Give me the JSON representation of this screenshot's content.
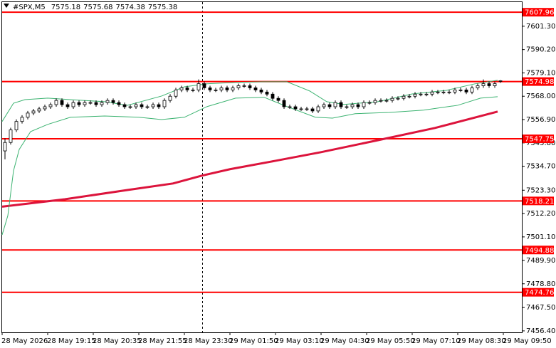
{
  "chart_data": {
    "type": "candlestick",
    "symbol": "#SPX,M5",
    "header_ohlc": [
      7575.18,
      7575.68,
      7574.38,
      7575.38
    ],
    "candle_color": "#000000",
    "candles": [
      [
        7542,
        7548,
        7538,
        7546
      ],
      [
        7546,
        7553,
        7545,
        7552
      ],
      [
        7552,
        7557,
        7551,
        7556
      ],
      [
        7556,
        7559,
        7555,
        7558
      ],
      [
        7558,
        7561,
        7557,
        7560
      ],
      [
        7560,
        7562,
        7559,
        7561
      ],
      [
        7561,
        7563,
        7560,
        7562
      ],
      [
        7562,
        7564,
        7561,
        7563
      ],
      [
        7563,
        7565,
        7562,
        7564
      ],
      [
        7564,
        7567,
        7563,
        7566
      ],
      [
        7566,
        7567,
        7563,
        7564
      ],
      [
        7564,
        7565,
        7562,
        7563
      ],
      [
        7563,
        7566,
        7562,
        7565
      ],
      [
        7565,
        7566,
        7563,
        7564
      ],
      [
        7564,
        7566,
        7563,
        7565
      ],
      [
        7565,
        7566,
        7564,
        7565
      ],
      [
        7565,
        7566,
        7563,
        7564
      ],
      [
        7564,
        7566,
        7563,
        7565
      ],
      [
        7565,
        7567,
        7564,
        7566
      ],
      [
        7566,
        7567,
        7564,
        7565
      ],
      [
        7565,
        7566,
        7563,
        7564
      ],
      [
        7564,
        7565,
        7562,
        7563
      ],
      [
        7563,
        7564,
        7562,
        7563
      ],
      [
        7563,
        7565,
        7562,
        7564
      ],
      [
        7564,
        7565,
        7562,
        7563
      ],
      [
        7563,
        7564,
        7562,
        7563
      ],
      [
        7563,
        7565,
        7562,
        7564
      ],
      [
        7564,
        7565,
        7562,
        7563
      ],
      [
        7563,
        7567,
        7562,
        7566
      ],
      [
        7566,
        7569,
        7565,
        7568
      ],
      [
        7568,
        7572,
        7567,
        7571
      ],
      [
        7571,
        7573,
        7570,
        7572
      ],
      [
        7572,
        7573,
        7570,
        7571
      ],
      [
        7571,
        7572,
        7570,
        7571
      ],
      [
        7571,
        7576,
        7570,
        7574
      ],
      [
        7574,
        7575,
        7571,
        7572
      ],
      [
        7572,
        7573,
        7570,
        7571
      ],
      [
        7571,
        7572,
        7570,
        7571
      ],
      [
        7571,
        7573,
        7570,
        7572
      ],
      [
        7572,
        7573,
        7570,
        7571
      ],
      [
        7571,
        7573,
        7570,
        7572
      ],
      [
        7572,
        7574,
        7571,
        7573
      ],
      [
        7573,
        7574,
        7572,
        7573
      ],
      [
        7573,
        7574,
        7571,
        7572
      ],
      [
        7572,
        7573,
        7570,
        7571
      ],
      [
        7571,
        7572,
        7569,
        7570
      ],
      [
        7570,
        7571,
        7568,
        7569
      ],
      [
        7569,
        7570,
        7566,
        7567
      ],
      [
        7567,
        7568,
        7565,
        7566
      ],
      [
        7566,
        7567,
        7562,
        7563
      ],
      [
        7563,
        7564,
        7562,
        7563
      ],
      [
        7563,
        7564,
        7561,
        7562
      ],
      [
        7562,
        7563,
        7561,
        7562
      ],
      [
        7562,
        7563,
        7561,
        7562
      ],
      [
        7562,
        7563,
        7560,
        7561
      ],
      [
        7561,
        7564,
        7560,
        7563
      ],
      [
        7563,
        7565,
        7562,
        7564
      ],
      [
        7564,
        7565,
        7562,
        7563
      ],
      [
        7563,
        7566,
        7562,
        7565
      ],
      [
        7565,
        7566,
        7562,
        7563
      ],
      [
        7563,
        7564,
        7562,
        7563
      ],
      [
        7563,
        7565,
        7562,
        7564
      ],
      [
        7564,
        7565,
        7562,
        7563
      ],
      [
        7563,
        7566,
        7562,
        7565
      ],
      [
        7565,
        7566,
        7564,
        7565
      ],
      [
        7565,
        7567,
        7564,
        7566
      ],
      [
        7566,
        7567,
        7565,
        7566
      ],
      [
        7566,
        7567,
        7565,
        7566
      ],
      [
        7566,
        7568,
        7565,
        7567
      ],
      [
        7567,
        7568,
        7566,
        7567
      ],
      [
        7567,
        7569,
        7566,
        7568
      ],
      [
        7568,
        7569,
        7567,
        7568
      ],
      [
        7568,
        7570,
        7567,
        7569
      ],
      [
        7569,
        7570,
        7568,
        7569
      ],
      [
        7569,
        7570,
        7568,
        7569
      ],
      [
        7569,
        7571,
        7568,
        7570
      ],
      [
        7570,
        7571,
        7569,
        7570
      ],
      [
        7570,
        7571,
        7569,
        7570
      ],
      [
        7570,
        7571,
        7569,
        7570
      ],
      [
        7570,
        7572,
        7569,
        7571
      ],
      [
        7571,
        7572,
        7570,
        7571
      ],
      [
        7571,
        7572,
        7569,
        7570
      ],
      [
        7570,
        7573,
        7569,
        7572
      ],
      [
        7572,
        7574,
        7571,
        7573
      ],
      [
        7573,
        7576,
        7572,
        7574
      ],
      [
        7574,
        7575,
        7572,
        7573
      ],
      [
        7573,
        7575,
        7572,
        7574
      ],
      [
        7575.18,
        7575.68,
        7574.38,
        7575.38
      ]
    ],
    "overlays": [
      {
        "color": "#dc143c",
        "width": 3,
        "x": [
          0,
          11,
          22,
          30,
          35,
          40,
          48,
          56,
          66,
          76,
          87
        ],
        "values": [
          7515.5,
          7519,
          7523.4,
          7526.5,
          7530.2,
          7533.3,
          7537.3,
          7541.4,
          7547.1,
          7552.9,
          7560.7
        ]
      },
      {
        "color": "#3cb371",
        "width": 1,
        "x": [
          0,
          2,
          4,
          8,
          12,
          18,
          22,
          28,
          32,
          36,
          41,
          46,
          50,
          54,
          57,
          60,
          66,
          72,
          78,
          83,
          87
        ],
        "values": [
          7556,
          7564.7,
          7566.4,
          7567.1,
          7566.4,
          7565.4,
          7563.7,
          7568.1,
          7572.5,
          7573.9,
          7574.6,
          7574.9,
          7574.9,
          7570.5,
          7565.4,
          7564.1,
          7565.4,
          7569.1,
          7570.8,
          7573.9,
          7575.6
        ]
      },
      {
        "color": "#3cb371",
        "width": 1,
        "x": [
          0,
          1,
          2,
          3,
          5,
          8,
          12,
          18,
          24,
          28,
          32,
          36,
          41,
          46,
          50,
          55,
          58,
          62,
          68,
          74,
          80,
          84,
          87
        ],
        "values": [
          7502.1,
          7511.2,
          7532.6,
          7542.7,
          7551.2,
          7554.6,
          7558,
          7558.6,
          7558,
          7556.9,
          7558,
          7563.1,
          7567.1,
          7567.5,
          7563.1,
          7558,
          7557.6,
          7559.7,
          7560.3,
          7561.4,
          7563.7,
          7567.1,
          7567.8
        ]
      }
    ],
    "level_color": "#ff0000",
    "levels": [
      7607.96,
      7574.98,
      7547.75,
      7518.21,
      7494.88,
      7474.76
    ],
    "ylim": [
      7455.7,
      7613.1
    ],
    "yticks": [
      {
        "value": 7601.3,
        "label": "7601.30"
      },
      {
        "value": 7590.2,
        "label": "7590.20"
      },
      {
        "value": 7579.1,
        "label": "7579.10"
      },
      {
        "value": 7568,
        "label": "7568.00"
      },
      {
        "value": 7556.9,
        "label": "7556.90"
      },
      {
        "value": 7545.8,
        "label": "7545.80"
      },
      {
        "value": 7534.7,
        "label": "7534.70"
      },
      {
        "value": 7523.3,
        "label": "7523.30"
      },
      {
        "value": 7512.2,
        "label": "7512.20"
      },
      {
        "value": 7501.1,
        "label": "7501.10"
      },
      {
        "value": 7489.9,
        "label": "7489.90"
      },
      {
        "value": 7478.8,
        "label": "7478.80"
      },
      {
        "value": 7467.5,
        "label": "7467.50"
      },
      {
        "value": 7456.4,
        "label": "7456.40"
      }
    ],
    "xlim": [
      0,
      91.25
    ],
    "xticks": [
      {
        "value": 0,
        "label": "28 May 2026"
      },
      {
        "value": 8,
        "label": "28 May 19:15"
      },
      {
        "value": 16,
        "label": "28 May 20:35"
      },
      {
        "value": 24,
        "label": "28 May 21:55"
      },
      {
        "value": 32,
        "label": "28 May 23:30"
      },
      {
        "value": 40,
        "label": "29 May 01:50"
      },
      {
        "value": 48,
        "label": "29 May 03:10"
      },
      {
        "value": 56,
        "label": "29 May 04:30"
      },
      {
        "value": 64,
        "label": "29 May 05:50"
      },
      {
        "value": 72,
        "label": "29 May 07:10"
      },
      {
        "value": 80,
        "label": "29 May 08:30"
      },
      {
        "value": 88,
        "label": "29 May 09:50"
      }
    ]
  }
}
